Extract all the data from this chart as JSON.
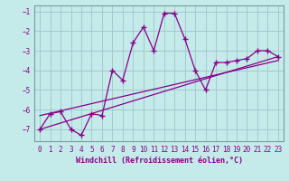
{
  "xlabel": "Windchill (Refroidissement éolien,°C)",
  "bg_color": "#c5eaea",
  "grid_color": "#a0cccc",
  "line_color": "#880088",
  "xlim": [
    -0.5,
    23.5
  ],
  "ylim": [
    -7.6,
    -0.7
  ],
  "yticks": [
    -7,
    -6,
    -5,
    -4,
    -3,
    -2,
    -1
  ],
  "xticks": [
    0,
    1,
    2,
    3,
    4,
    5,
    6,
    7,
    8,
    9,
    10,
    11,
    12,
    13,
    14,
    15,
    16,
    17,
    18,
    19,
    20,
    21,
    22,
    23
  ],
  "line1_x": [
    0,
    1,
    2,
    3,
    4,
    5,
    6,
    7,
    8,
    9,
    10,
    11,
    12,
    13,
    14,
    15,
    16,
    17,
    18,
    19,
    20,
    21,
    22,
    23
  ],
  "line1_y": [
    -7.0,
    -6.2,
    -6.1,
    -7.0,
    -7.3,
    -6.2,
    -6.3,
    -4.0,
    -4.5,
    -2.6,
    -1.8,
    -3.0,
    -1.1,
    -1.1,
    -2.4,
    -4.0,
    -5.0,
    -3.6,
    -3.6,
    -3.5,
    -3.4,
    -3.0,
    -3.0,
    -3.3
  ],
  "trend1_x": [
    0,
    23
  ],
  "trend1_y": [
    -7.0,
    -3.3
  ],
  "trend2_x": [
    0,
    23
  ],
  "trend2_y": [
    -6.3,
    -3.5
  ],
  "tick_fontsize": 5.5,
  "xlabel_fontsize": 6.0
}
